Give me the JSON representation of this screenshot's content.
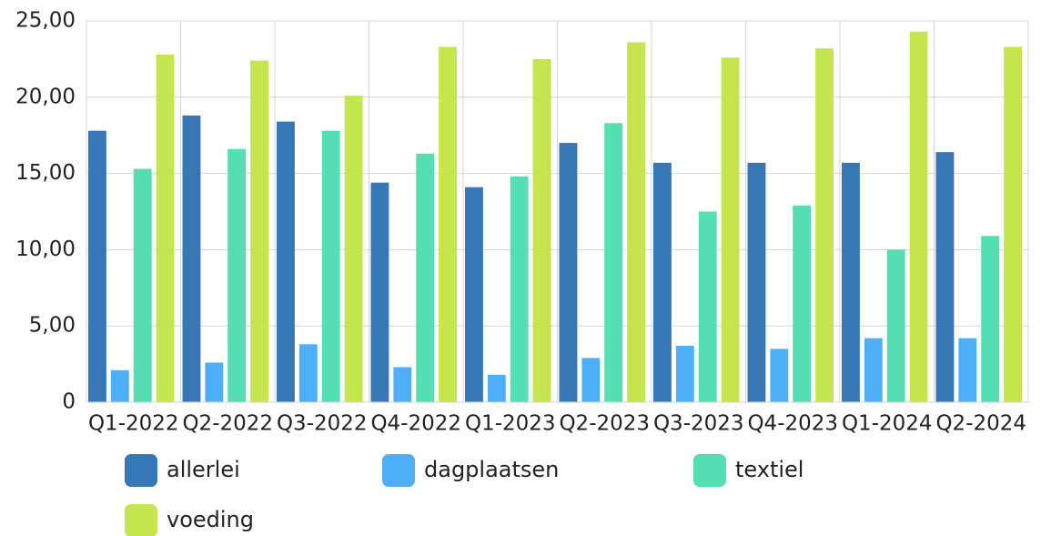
{
  "chart_data": {
    "type": "bar",
    "categories": [
      "Q1-2022",
      "Q2-2022",
      "Q3-2022",
      "Q4-2022",
      "Q1-2023",
      "Q2-2023",
      "Q3-2023",
      "Q4-2023",
      "Q1-2024",
      "Q2-2024"
    ],
    "series": [
      {
        "name": "allerlei",
        "color": "#3777b5",
        "values": [
          17.8,
          18.8,
          18.4,
          14.4,
          14.1,
          17.0,
          15.7,
          15.7,
          15.7,
          16.4
        ]
      },
      {
        "name": "dagplaatsen",
        "color": "#4faef8",
        "values": [
          2.1,
          2.6,
          3.8,
          2.3,
          1.8,
          2.9,
          3.7,
          3.5,
          4.2,
          4.2
        ]
      },
      {
        "name": "textiel",
        "color": "#55deb4",
        "values": [
          15.3,
          16.6,
          17.8,
          16.3,
          14.8,
          18.3,
          12.5,
          12.9,
          10.0,
          10.9
        ]
      },
      {
        "name": "voeding",
        "color": "#c5e54f",
        "values": [
          22.8,
          22.4,
          20.1,
          23.3,
          22.5,
          23.6,
          22.6,
          23.2,
          24.3,
          23.3
        ]
      }
    ],
    "ylim": [
      0,
      25
    ],
    "yticks": [
      0,
      {
        "value": 5,
        "label": "5,00"
      },
      {
        "value": 10,
        "label": "10,00"
      },
      {
        "value": 15,
        "label": "15,00"
      },
      {
        "value": 20,
        "label": "20,00"
      },
      {
        "value": 25,
        "label": "25,00"
      }
    ],
    "grid": true,
    "legend": "bottom"
  }
}
